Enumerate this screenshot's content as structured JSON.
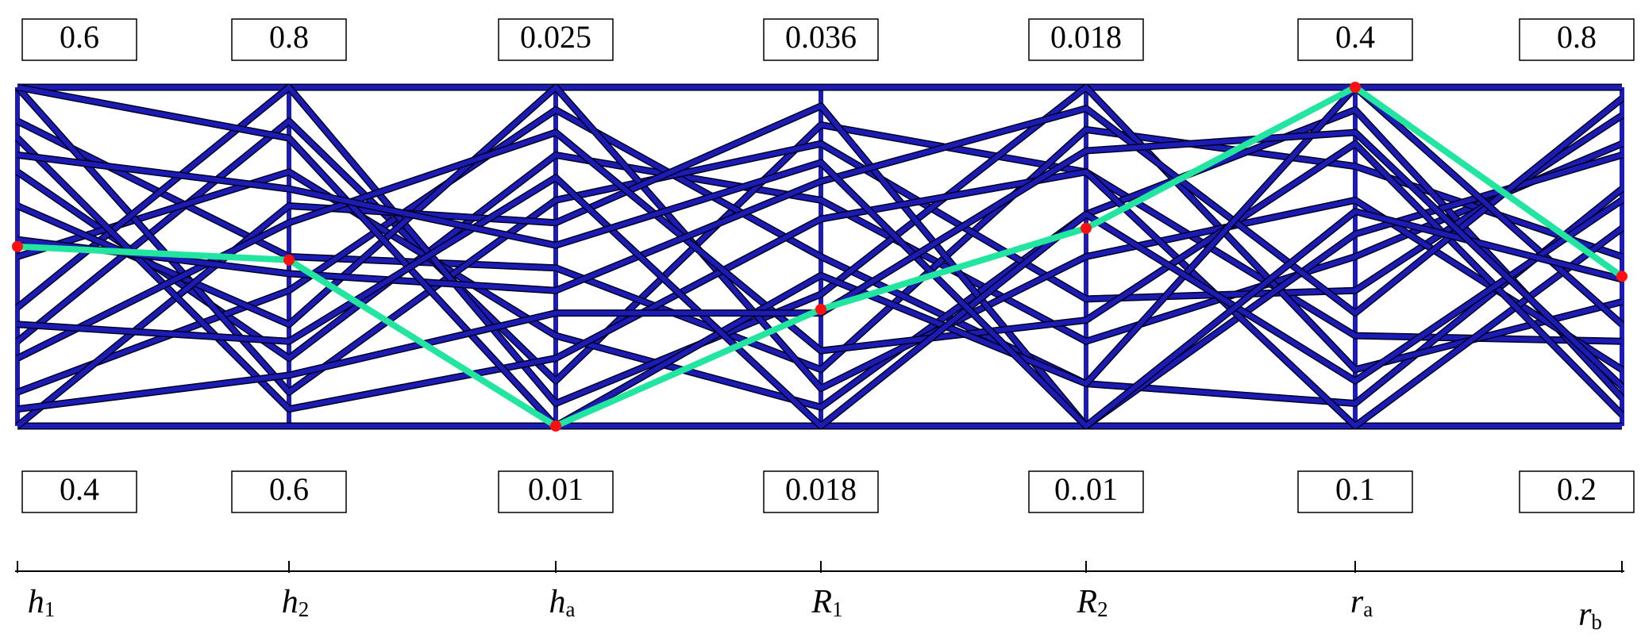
{
  "chart_data": {
    "type": "parallel",
    "axes": [
      {
        "name": {
          "main": "h",
          "sub": "1"
        },
        "lim": [
          0.4,
          0.6
        ]
      },
      {
        "name": {
          "main": "h",
          "sub": "2"
        },
        "lim": [
          0.6,
          0.8
        ]
      },
      {
        "name": {
          "main": "h",
          "sub": "a"
        },
        "lim": [
          0.01,
          0.025
        ]
      },
      {
        "name": {
          "main": "R",
          "sub": "1"
        },
        "lim": [
          0.018,
          0.036
        ]
      },
      {
        "name": {
          "main": "R",
          "sub": "2"
        },
        "lim": [
          {
            "value": 0.01,
            "label": "0..01"
          },
          0.018
        ]
      },
      {
        "name": {
          "main": "r",
          "sub": "a"
        },
        "lim": [
          0.1,
          0.4
        ]
      },
      {
        "name": {
          "main": "r",
          "sub": "b"
        },
        "lim": [
          0.2,
          0.8
        ]
      }
    ],
    "lines_color": "#1c1cb4",
    "lines": [
      [
        0.6,
        0.8,
        0.025,
        0.036,
        0.018,
        0.4,
        0.8
      ],
      [
        0.4,
        0.6,
        0.01,
        0.018,
        0.01,
        0.1,
        0.2
      ],
      [
        0.55,
        0.64,
        0.022,
        0.03,
        0.012,
        0.25,
        0.7
      ],
      [
        0.45,
        0.78,
        0.012,
        0.034,
        0.016,
        0.18,
        0.35
      ],
      [
        0.58,
        0.7,
        0.017,
        0.021,
        0.017,
        0.33,
        0.5
      ],
      [
        0.42,
        0.68,
        0.024,
        0.027,
        0.011,
        0.12,
        0.62
      ],
      [
        0.5,
        0.75,
        0.014,
        0.019,
        0.015,
        0.38,
        0.25
      ],
      [
        0.6,
        0.62,
        0.02,
        0.033,
        0.013,
        0.22,
        0.75
      ],
      [
        0.47,
        0.8,
        0.011,
        0.025,
        0.018,
        0.15,
        0.42
      ],
      [
        0.53,
        0.66,
        0.025,
        0.02,
        0.014,
        0.3,
        0.3
      ],
      [
        0.4,
        0.73,
        0.019,
        0.035,
        0.01,
        0.27,
        0.68
      ],
      [
        0.57,
        0.61,
        0.013,
        0.029,
        0.016,
        0.1,
        0.55
      ],
      [
        0.44,
        0.72,
        0.023,
        0.022,
        0.0125,
        0.35,
        0.22
      ],
      [
        0.51,
        0.69,
        0.016,
        0.031,
        0.0175,
        0.2,
        0.78
      ],
      [
        0.6,
        0.77,
        0.01,
        0.026,
        0.011,
        0.4,
        0.38
      ],
      [
        0.46,
        0.65,
        0.021,
        0.018,
        0.015,
        0.14,
        0.6
      ],
      [
        0.56,
        0.74,
        0.018,
        0.032,
        0.01,
        0.29,
        0.46
      ],
      [
        0.41,
        0.63,
        0.015,
        0.024,
        0.0165,
        0.36,
        0.27
      ]
    ],
    "highlight": {
      "color": "#22e6a0",
      "marker_color": "#ff1010",
      "values": [
        0.506,
        0.698,
        0.01,
        0.0242,
        0.01467,
        0.4,
        0.465
      ]
    }
  }
}
